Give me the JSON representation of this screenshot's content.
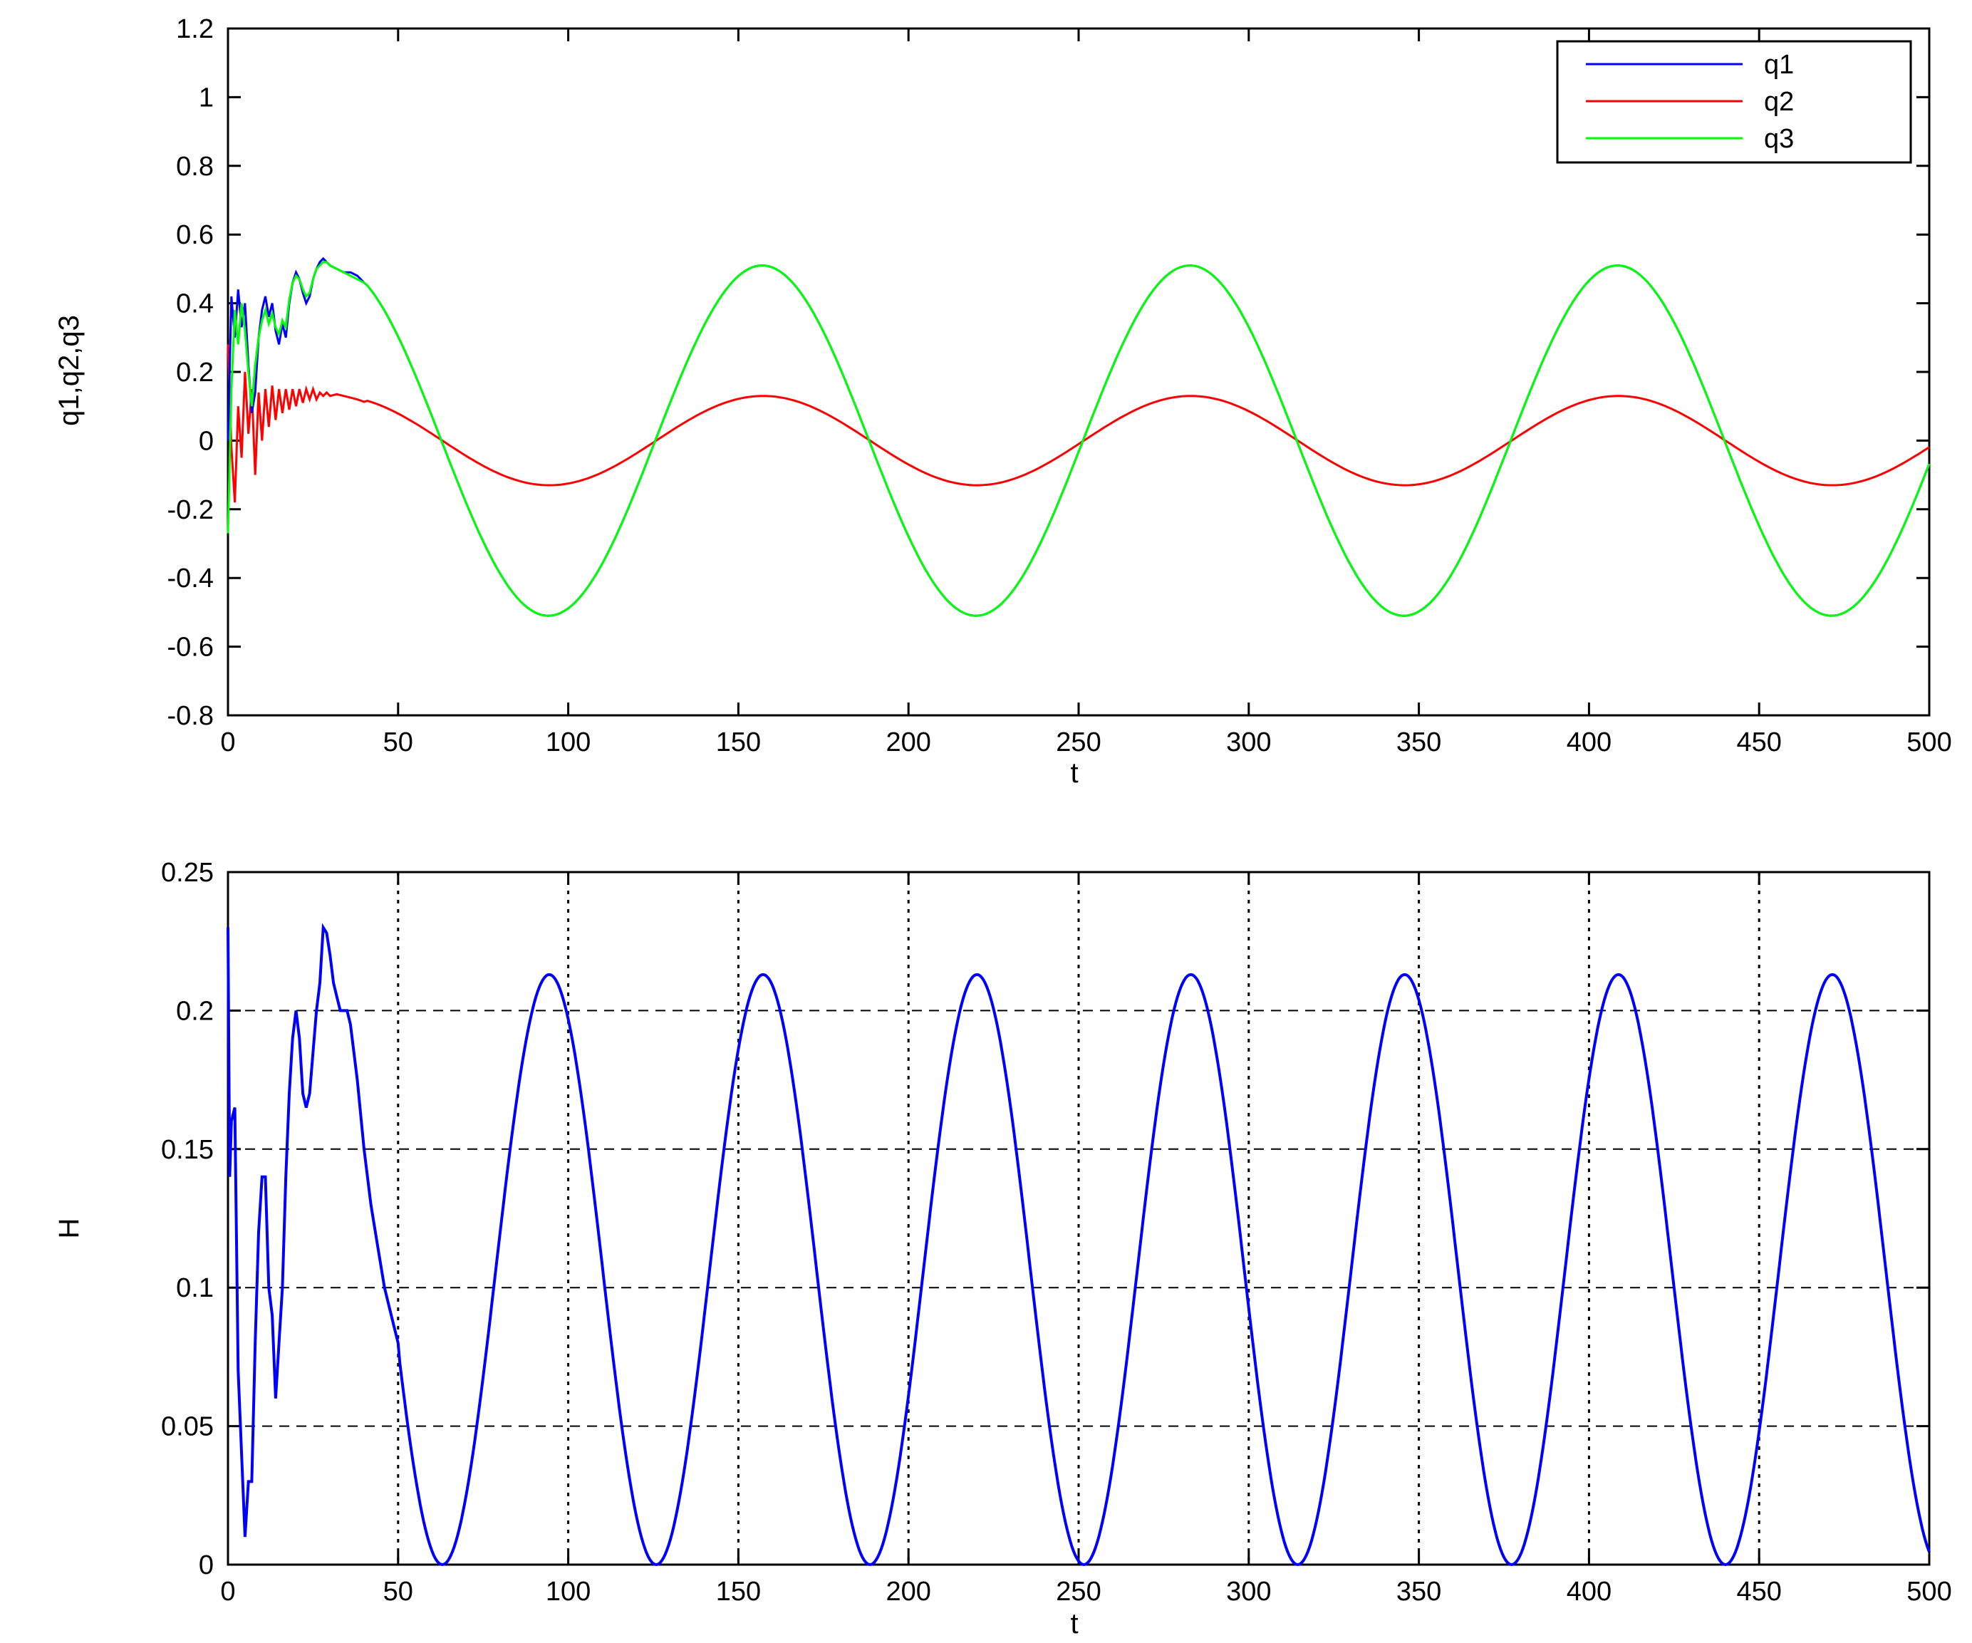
{
  "chart_data": [
    {
      "type": "line",
      "title": "",
      "xlabel": "t",
      "ylabel": "q1,q2,q3",
      "xlim": [
        0,
        500
      ],
      "ylim": [
        -0.8,
        1.2
      ],
      "xticks": [
        "0",
        "50",
        "100",
        "150",
        "200",
        "250",
        "300",
        "350",
        "400",
        "450",
        "500"
      ],
      "yticks": [
        "-0.8",
        "-0.6",
        "-0.4",
        "-0.2",
        "0",
        "0.2",
        "0.4",
        "0.6",
        "0.8",
        "1",
        "1.2"
      ],
      "grid": false,
      "legend": "top-right",
      "series": [
        {
          "name": "q1",
          "color": "#0000ff",
          "x": [
            0,
            1,
            2,
            3,
            4,
            5,
            6,
            7,
            8,
            9,
            10,
            11,
            12,
            13,
            14,
            15,
            16,
            17,
            18,
            19,
            20,
            21,
            22,
            23,
            24,
            25,
            26,
            27,
            28,
            29,
            30,
            32,
            34,
            36,
            38,
            40
          ],
          "y": [
            0.0,
            0.42,
            0.3,
            0.44,
            0.33,
            0.4,
            0.22,
            0.08,
            0.14,
            0.3,
            0.38,
            0.42,
            0.36,
            0.4,
            0.32,
            0.28,
            0.34,
            0.3,
            0.4,
            0.46,
            0.49,
            0.47,
            0.43,
            0.4,
            0.42,
            0.47,
            0.5,
            0.52,
            0.53,
            0.52,
            0.51,
            0.5,
            0.49,
            0.49,
            0.48,
            0.46
          ]
        },
        {
          "name": "q2",
          "color": "#ff0000",
          "x": [
            0,
            1,
            2,
            3,
            4,
            5,
            6,
            7,
            8,
            9,
            10,
            11,
            12,
            13,
            14,
            15,
            16,
            17,
            18,
            19,
            20,
            21,
            22,
            23,
            24,
            25,
            26,
            27,
            28,
            29,
            30,
            32,
            34,
            36,
            38,
            40
          ],
          "y": [
            0.28,
            -0.02,
            -0.18,
            0.1,
            -0.05,
            0.2,
            0.02,
            0.15,
            -0.1,
            0.14,
            0.0,
            0.15,
            0.04,
            0.16,
            0.06,
            0.15,
            0.08,
            0.15,
            0.09,
            0.15,
            0.1,
            0.15,
            0.11,
            0.15,
            0.12,
            0.15,
            0.12,
            0.14,
            0.13,
            0.14,
            0.13,
            0.135,
            0.13,
            0.125,
            0.12,
            0.113
          ]
        },
        {
          "name": "q3",
          "color": "#00ff00",
          "x": [
            0,
            1,
            2,
            3,
            4,
            5,
            6,
            7,
            8,
            9,
            10,
            11,
            12,
            13,
            14,
            15,
            16,
            17,
            18,
            19,
            20,
            21,
            22,
            23,
            24,
            25,
            26,
            27,
            28,
            29,
            30,
            32,
            34,
            36,
            38,
            40
          ],
          "y": [
            -0.27,
            0.15,
            0.38,
            0.28,
            0.4,
            0.32,
            0.2,
            0.1,
            0.22,
            0.3,
            0.35,
            0.38,
            0.34,
            0.37,
            0.33,
            0.31,
            0.35,
            0.33,
            0.41,
            0.46,
            0.48,
            0.47,
            0.44,
            0.42,
            0.43,
            0.47,
            0.5,
            0.51,
            0.52,
            0.52,
            0.51,
            0.5,
            0.49,
            0.48,
            0.47,
            0.46
          ]
        }
      ],
      "steady_state": {
        "t_start": 40,
        "t_end": 500,
        "period": 125.7,
        "peak_time": 157,
        "q1_amplitude": 0.51,
        "q2_amplitude": 0.13,
        "q2_zero_crossing": 63,
        "q3_amplitude": 0.51
      }
    },
    {
      "type": "line",
      "title": "",
      "xlabel": "t",
      "ylabel": "H",
      "xlim": [
        0,
        500
      ],
      "ylim": [
        0,
        0.25
      ],
      "xticks": [
        "0",
        "50",
        "100",
        "150",
        "200",
        "250",
        "300",
        "350",
        "400",
        "450",
        "500"
      ],
      "yticks": [
        "0",
        "0.05",
        "0.1",
        "0.15",
        "0.2",
        "0.25"
      ],
      "grid": true,
      "grid_style": "dotted",
      "series": [
        {
          "color": "#0000ff",
          "x": [
            0,
            0.5,
            1,
            2,
            3,
            4,
            5,
            6,
            7,
            8,
            9,
            10,
            11,
            12,
            13,
            14,
            15,
            16,
            17,
            18,
            19,
            20,
            21,
            22,
            23,
            24,
            25,
            26,
            27,
            28,
            29,
            30,
            31,
            32,
            33,
            34,
            35,
            36,
            38,
            40,
            42,
            44,
            46,
            48,
            50
          ],
          "y": [
            0.23,
            0.14,
            0.16,
            0.165,
            0.07,
            0.04,
            0.01,
            0.03,
            0.03,
            0.08,
            0.12,
            0.14,
            0.14,
            0.1,
            0.09,
            0.06,
            0.08,
            0.1,
            0.14,
            0.17,
            0.19,
            0.2,
            0.19,
            0.17,
            0.165,
            0.17,
            0.185,
            0.2,
            0.21,
            0.23,
            0.228,
            0.22,
            0.21,
            0.205,
            0.2,
            0.2,
            0.2,
            0.195,
            0.175,
            0.15,
            0.13,
            0.115,
            0.1,
            0.09,
            0.08
          ]
        }
      ],
      "steady_state": {
        "t_start": 50,
        "t_end": 500,
        "period": 62.85,
        "peak_value": 0.213,
        "first_zero": 63
      }
    }
  ]
}
